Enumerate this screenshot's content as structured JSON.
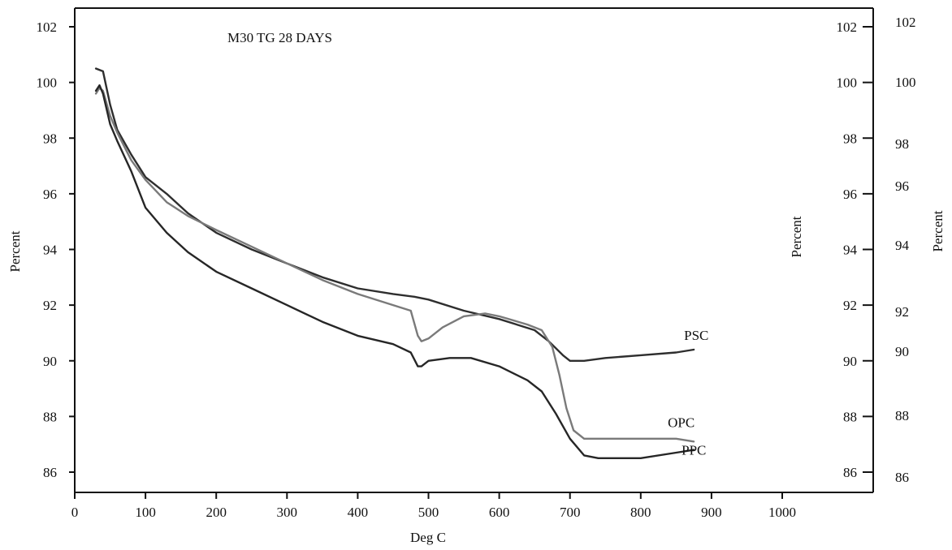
{
  "chart_data": {
    "type": "line",
    "title": "M30 TG 28 DAYS",
    "xlabel": "Deg C",
    "ylabel_left": "Percent",
    "ylabel_right_inner": "Percent",
    "ylabel_right_outer": "Percent",
    "xlim": [
      0,
      1000
    ],
    "ylim": [
      85,
      103
    ],
    "x_ticks": [
      "0",
      "100",
      "200",
      "300",
      "400",
      "500",
      "600",
      "700",
      "800",
      "900",
      "1000"
    ],
    "y_ticks_left": [
      "86",
      "88",
      "90",
      "92",
      "94",
      "96",
      "98",
      "100",
      "102"
    ],
    "y_ticks_right_inner": [
      "86",
      "88",
      "90",
      "92",
      "94",
      "96",
      "98",
      "100",
      "102"
    ],
    "y_ticks_right_outer": [
      "86",
      "88",
      "90",
      "92",
      "94",
      "96",
      "98",
      "100",
      "102"
    ],
    "grid": false,
    "colors": {
      "PSC": "#2e2e2e",
      "OPC": "#7a7a7a",
      "PPC": "#262626"
    },
    "series": [
      {
        "name": "PSC",
        "x": [
          30,
          40,
          50,
          60,
          80,
          100,
          130,
          160,
          200,
          250,
          300,
          350,
          400,
          450,
          480,
          500,
          550,
          600,
          650,
          670,
          690,
          700,
          720,
          750,
          800,
          850,
          875
        ],
        "y": [
          100.5,
          100.4,
          99.2,
          98.3,
          97.4,
          96.6,
          96.0,
          95.3,
          94.6,
          94.0,
          93.5,
          93.0,
          92.6,
          92.4,
          92.3,
          92.2,
          91.8,
          91.5,
          91.1,
          90.7,
          90.2,
          90.0,
          90.0,
          90.1,
          90.2,
          90.3,
          90.4
        ]
      },
      {
        "name": "OPC",
        "x": [
          30,
          35,
          40,
          50,
          60,
          80,
          100,
          130,
          160,
          200,
          250,
          300,
          350,
          400,
          450,
          475,
          485,
          490,
          500,
          520,
          550,
          580,
          600,
          640,
          660,
          675,
          685,
          695,
          705,
          720,
          750,
          800,
          850,
          875
        ],
        "y": [
          99.6,
          99.8,
          99.7,
          98.8,
          98.2,
          97.2,
          96.5,
          95.7,
          95.2,
          94.7,
          94.1,
          93.5,
          92.9,
          92.4,
          92.0,
          91.8,
          90.9,
          90.7,
          90.8,
          91.2,
          91.6,
          91.7,
          91.6,
          91.3,
          91.1,
          90.5,
          89.5,
          88.3,
          87.5,
          87.2,
          87.2,
          87.2,
          87.2,
          87.1
        ]
      },
      {
        "name": "PPC",
        "x": [
          30,
          35,
          40,
          50,
          60,
          80,
          100,
          130,
          160,
          200,
          250,
          300,
          350,
          400,
          450,
          475,
          485,
          490,
          500,
          530,
          560,
          600,
          640,
          660,
          680,
          700,
          720,
          740,
          760,
          800,
          850,
          875
        ],
        "y": [
          99.7,
          99.9,
          99.6,
          98.5,
          97.9,
          96.8,
          95.5,
          94.6,
          93.9,
          93.2,
          92.6,
          92.0,
          91.4,
          90.9,
          90.6,
          90.3,
          89.8,
          89.8,
          90.0,
          90.1,
          90.1,
          89.8,
          89.3,
          88.9,
          88.1,
          87.2,
          86.6,
          86.5,
          86.5,
          86.5,
          86.7,
          86.8
        ]
      }
    ]
  }
}
